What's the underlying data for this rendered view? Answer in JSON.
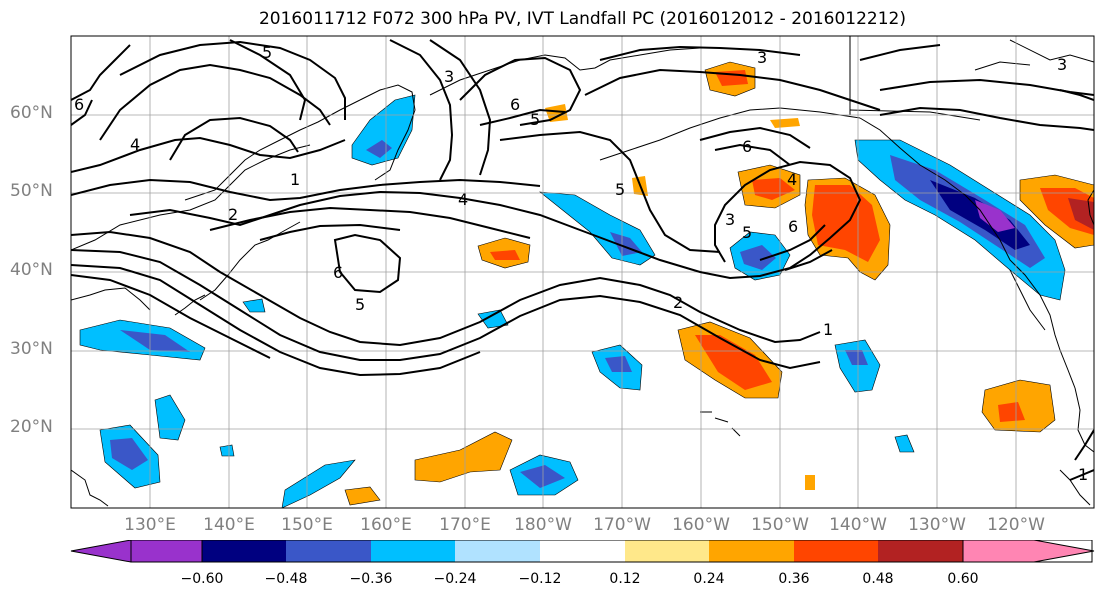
{
  "title": "2016011712 F072 300 hPa PV, IVT Landfall PC (2016012012 - 2016012212)",
  "lat_labels": [
    "60°N",
    "50°N",
    "40°N",
    "30°N",
    "20°N"
  ],
  "lon_labels": [
    "130°E",
    "140°E",
    "150°E",
    "160°E",
    "170°E",
    "180°W",
    "170°W",
    "160°W",
    "150°W",
    "140°W",
    "130°W",
    "120°W"
  ],
  "contour_labels": [
    "5",
    "6",
    "4",
    "1",
    "3",
    "6",
    "5",
    "2",
    "4",
    "6",
    "5",
    "3",
    "5",
    "6",
    "3",
    "4",
    "5",
    "6",
    "2",
    "1",
    "3",
    "1"
  ],
  "colorbar": {
    "ticks": [
      "−0.60",
      "−0.48",
      "−0.36",
      "−0.24",
      "−0.12",
      "0.12",
      "0.24",
      "0.36",
      "0.48",
      "0.60"
    ],
    "colors": [
      "#9932cc",
      "#000080",
      "#3a57c8",
      "#00bfff",
      "#b0e2ff",
      "#ffffff",
      "#ffe88a",
      "#ffa500",
      "#ff4500",
      "#b22222",
      "#ff85b3"
    ]
  },
  "colors": {
    "contour": "#000000",
    "grid": "#a0a0a0",
    "coast": "#000000"
  }
}
